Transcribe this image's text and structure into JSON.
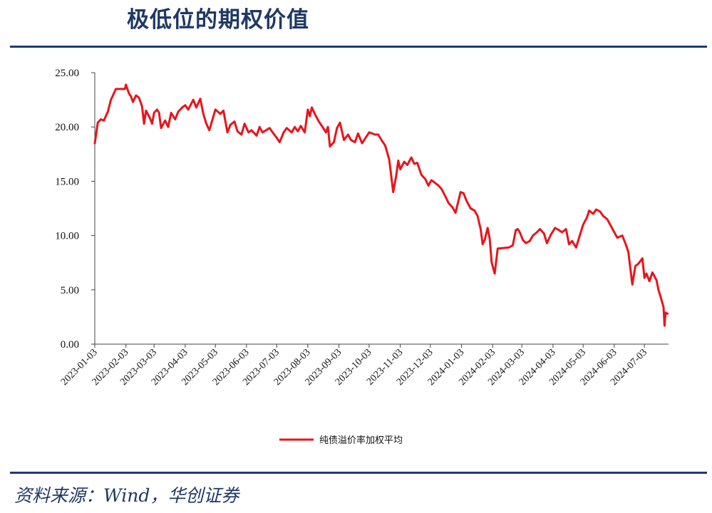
{
  "header": {
    "title": "极低位的期权价值"
  },
  "footer": {
    "source": "资料来源：Wind，华创证券"
  },
  "colors": {
    "accent": "#1f3a78",
    "series": "#e8141c",
    "title": "#1f3864"
  },
  "chart_data": {
    "type": "line",
    "title": "",
    "xlabel": "",
    "ylabel": "",
    "ylim": [
      0,
      25
    ],
    "yticks": [
      "0.00",
      "5.00",
      "10.00",
      "15.00",
      "20.00",
      "25.00"
    ],
    "xticks": [
      "2023-01-03",
      "2023-02-03",
      "2023-03-03",
      "2023-04-03",
      "2023-05-03",
      "2023-06-03",
      "2023-07-03",
      "2023-08-03",
      "2023-09-03",
      "2023-10-03",
      "2023-11-03",
      "2023-12-03",
      "2024-01-03",
      "2024-02-03",
      "2024-03-03",
      "2024-04-03",
      "2024-05-03",
      "2024-06-03",
      "2024-07-03"
    ],
    "grid": false,
    "legend": "bottom-center",
    "series": [
      {
        "name": "纯债溢价率加权平均",
        "points": [
          [
            "2023-01-03",
            18.5
          ],
          [
            "2023-01-06",
            20.4
          ],
          [
            "2023-01-09",
            20.7
          ],
          [
            "2023-01-12",
            20.6
          ],
          [
            "2023-01-16",
            21.4
          ],
          [
            "2023-01-19",
            22.5
          ],
          [
            "2023-01-24",
            23.5
          ],
          [
            "2023-01-27",
            23.5
          ],
          [
            "2023-01-31",
            23.5
          ],
          [
            "2023-02-02",
            23.5
          ],
          [
            "2023-02-03",
            23.9
          ],
          [
            "2023-02-06",
            23.1
          ],
          [
            "2023-02-08",
            22.8
          ],
          [
            "2023-02-10",
            22.3
          ],
          [
            "2023-02-13",
            22.9
          ],
          [
            "2023-02-16",
            22.7
          ],
          [
            "2023-02-19",
            21.9
          ],
          [
            "2023-02-21",
            20.3
          ],
          [
            "2023-02-23",
            21.5
          ],
          [
            "2023-02-27",
            20.8
          ],
          [
            "2023-03-01",
            20.3
          ],
          [
            "2023-03-03",
            21.3
          ],
          [
            "2023-03-06",
            21.6
          ],
          [
            "2023-03-08",
            21.3
          ],
          [
            "2023-03-10",
            19.9
          ],
          [
            "2023-03-14",
            20.6
          ],
          [
            "2023-03-17",
            20.0
          ],
          [
            "2023-03-20",
            21.3
          ],
          [
            "2023-03-24",
            20.7
          ],
          [
            "2023-03-27",
            21.4
          ],
          [
            "2023-03-31",
            21.8
          ],
          [
            "2023-04-03",
            22.0
          ],
          [
            "2023-04-06",
            21.6
          ],
          [
            "2023-04-11",
            22.5
          ],
          [
            "2023-04-14",
            21.8
          ],
          [
            "2023-04-18",
            22.6
          ],
          [
            "2023-04-21",
            21.2
          ],
          [
            "2023-04-24",
            20.3
          ],
          [
            "2023-04-27",
            19.7
          ],
          [
            "2023-05-03",
            21.6
          ],
          [
            "2023-05-08",
            21.2
          ],
          [
            "2023-05-11",
            21.5
          ],
          [
            "2023-05-15",
            19.5
          ],
          [
            "2023-05-18",
            20.2
          ],
          [
            "2023-05-22",
            20.5
          ],
          [
            "2023-05-25",
            19.6
          ],
          [
            "2023-05-29",
            19.3
          ],
          [
            "2023-06-01",
            20.3
          ],
          [
            "2023-06-05",
            19.5
          ],
          [
            "2023-06-08",
            19.7
          ],
          [
            "2023-06-13",
            19.2
          ],
          [
            "2023-06-16",
            20.0
          ],
          [
            "2023-06-19",
            19.5
          ],
          [
            "2023-06-26",
            19.9
          ],
          [
            "2023-06-29",
            19.5
          ],
          [
            "2023-07-03",
            19.0
          ],
          [
            "2023-07-06",
            18.6
          ],
          [
            "2023-07-10",
            19.5
          ],
          [
            "2023-07-13",
            19.9
          ],
          [
            "2023-07-18",
            19.5
          ],
          [
            "2023-07-21",
            20.0
          ],
          [
            "2023-07-24",
            19.6
          ],
          [
            "2023-07-27",
            20.1
          ],
          [
            "2023-07-31",
            19.5
          ],
          [
            "2023-08-03",
            21.6
          ],
          [
            "2023-08-05",
            21.0
          ],
          [
            "2023-08-07",
            21.8
          ],
          [
            "2023-08-10",
            21.2
          ],
          [
            "2023-08-14",
            20.5
          ],
          [
            "2023-08-17",
            20.1
          ],
          [
            "2023-08-21",
            19.5
          ],
          [
            "2023-08-23",
            20.0
          ],
          [
            "2023-08-25",
            18.2
          ],
          [
            "2023-08-29",
            18.6
          ],
          [
            "2023-09-01",
            19.9
          ],
          [
            "2023-09-04",
            20.4
          ],
          [
            "2023-09-06",
            19.6
          ],
          [
            "2023-09-08",
            18.8
          ],
          [
            "2023-09-12",
            19.3
          ],
          [
            "2023-09-15",
            18.8
          ],
          [
            "2023-09-19",
            18.6
          ],
          [
            "2023-09-22",
            19.4
          ],
          [
            "2023-09-26",
            18.5
          ],
          [
            "2023-10-03",
            19.5
          ],
          [
            "2023-10-09",
            19.3
          ],
          [
            "2023-10-12",
            19.3
          ],
          [
            "2023-10-16",
            18.7
          ],
          [
            "2023-10-19",
            18.3
          ],
          [
            "2023-10-23",
            17.0
          ],
          [
            "2023-10-25",
            15.5
          ],
          [
            "2023-10-27",
            14.0
          ],
          [
            "2023-10-30",
            15.5
          ],
          [
            "2023-11-01",
            16.9
          ],
          [
            "2023-11-03",
            16.1
          ],
          [
            "2023-11-07",
            16.8
          ],
          [
            "2023-11-10",
            16.5
          ],
          [
            "2023-11-14",
            17.2
          ],
          [
            "2023-11-17",
            16.6
          ],
          [
            "2023-11-20",
            16.7
          ],
          [
            "2023-11-24",
            15.6
          ],
          [
            "2023-11-28",
            15.2
          ],
          [
            "2023-12-01",
            14.6
          ],
          [
            "2023-12-04",
            15.1
          ],
          [
            "2023-12-07",
            14.9
          ],
          [
            "2023-12-11",
            14.6
          ],
          [
            "2023-12-14",
            14.3
          ],
          [
            "2023-12-18",
            13.6
          ],
          [
            "2023-12-21",
            13.0
          ],
          [
            "2023-12-25",
            12.6
          ],
          [
            "2023-12-28",
            12.1
          ],
          [
            "2024-01-02",
            14.0
          ],
          [
            "2024-01-05",
            13.9
          ],
          [
            "2024-01-08",
            13.2
          ],
          [
            "2024-01-12",
            12.5
          ],
          [
            "2024-01-16",
            12.3
          ],
          [
            "2024-01-19",
            11.8
          ],
          [
            "2024-01-22",
            10.6
          ],
          [
            "2024-01-24",
            9.2
          ],
          [
            "2024-01-26",
            9.6
          ],
          [
            "2024-01-29",
            10.7
          ],
          [
            "2024-01-31",
            9.7
          ],
          [
            "2024-02-02",
            7.5
          ],
          [
            "2024-02-05",
            6.5
          ],
          [
            "2024-02-08",
            8.8
          ],
          [
            "2024-02-19",
            8.9
          ],
          [
            "2024-02-23",
            9.1
          ],
          [
            "2024-02-26",
            10.5
          ],
          [
            "2024-02-28",
            10.6
          ],
          [
            "2024-03-01",
            10.3
          ],
          [
            "2024-03-04",
            9.6
          ],
          [
            "2024-03-07",
            9.3
          ],
          [
            "2024-03-11",
            9.5
          ],
          [
            "2024-03-14",
            10.0
          ],
          [
            "2024-03-18",
            10.3
          ],
          [
            "2024-03-21",
            10.6
          ],
          [
            "2024-03-25",
            10.2
          ],
          [
            "2024-03-28",
            9.3
          ],
          [
            "2024-04-01",
            10.1
          ],
          [
            "2024-04-05",
            10.7
          ],
          [
            "2024-04-09",
            10.5
          ],
          [
            "2024-04-12",
            10.3
          ],
          [
            "2024-04-16",
            10.6
          ],
          [
            "2024-04-19",
            9.2
          ],
          [
            "2024-04-22",
            9.5
          ],
          [
            "2024-04-26",
            8.9
          ],
          [
            "2024-04-30",
            10.1
          ],
          [
            "2024-05-03",
            11.0
          ],
          [
            "2024-05-07",
            11.7
          ],
          [
            "2024-05-09",
            12.3
          ],
          [
            "2024-05-13",
            12.0
          ],
          [
            "2024-05-16",
            12.4
          ],
          [
            "2024-05-20",
            12.2
          ],
          [
            "2024-05-23",
            11.8
          ],
          [
            "2024-05-27",
            11.5
          ],
          [
            "2024-05-30",
            11.0
          ],
          [
            "2024-06-03",
            10.3
          ],
          [
            "2024-06-06",
            9.8
          ],
          [
            "2024-06-11",
            10.0
          ],
          [
            "2024-06-14",
            9.3
          ],
          [
            "2024-06-17",
            8.5
          ],
          [
            "2024-06-19",
            7.0
          ],
          [
            "2024-06-21",
            5.5
          ],
          [
            "2024-06-24",
            7.2
          ],
          [
            "2024-06-27",
            7.4
          ],
          [
            "2024-07-01",
            7.9
          ],
          [
            "2024-07-03",
            6.1
          ],
          [
            "2024-07-05",
            6.5
          ],
          [
            "2024-07-08",
            5.8
          ],
          [
            "2024-07-11",
            6.6
          ],
          [
            "2024-07-15",
            5.9
          ],
          [
            "2024-07-17",
            5.0
          ],
          [
            "2024-07-19",
            4.4
          ],
          [
            "2024-07-22",
            3.4
          ],
          [
            "2024-07-23",
            1.7
          ],
          [
            "2024-07-24",
            2.9
          ],
          [
            "2024-07-26",
            2.8
          ]
        ]
      }
    ]
  }
}
